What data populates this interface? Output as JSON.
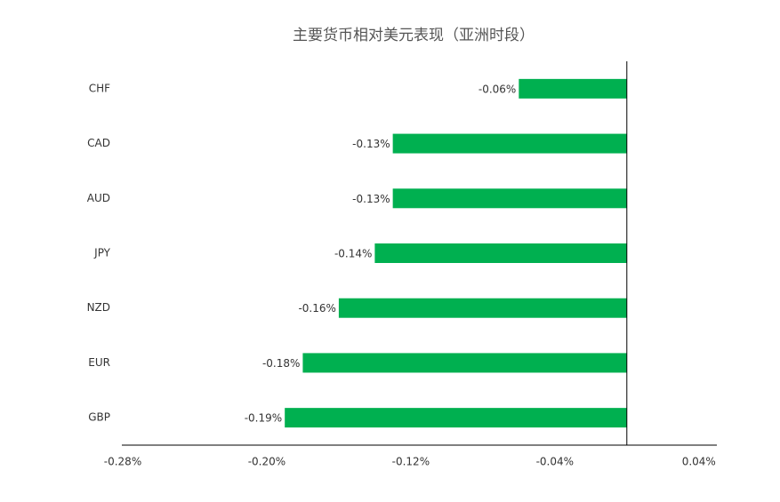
{
  "chart_data": {
    "type": "barh",
    "title": "主要货币相对美元表现（亚洲时段）",
    "categories": [
      "CHF",
      "CAD",
      "AUD",
      "JPY",
      "NZD",
      "EUR",
      "GBP"
    ],
    "values": [
      -0.06,
      -0.13,
      -0.13,
      -0.14,
      -0.16,
      -0.18,
      -0.19
    ],
    "value_labels": [
      "-0.06%",
      "-0.13%",
      "-0.13%",
      "-0.14%",
      "-0.16%",
      "-0.18%",
      "-0.19%"
    ],
    "color": "#00b050",
    "xlim": [
      -0.28,
      0.05
    ],
    "xticks": [
      {
        "value": -0.28,
        "label": "-0.28%"
      },
      {
        "value": -0.2,
        "label": "-0.20%"
      },
      {
        "value": -0.12,
        "label": "-0.12%"
      },
      {
        "value": -0.04,
        "label": "-0.04%"
      },
      {
        "value": 0.04,
        "label": "0.04%"
      }
    ]
  }
}
